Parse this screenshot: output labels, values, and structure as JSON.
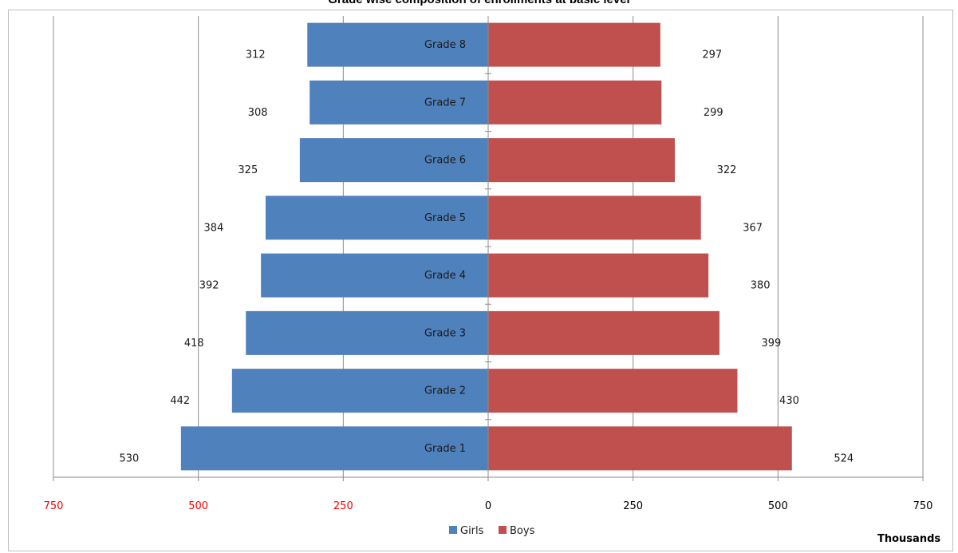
{
  "chart_data": {
    "type": "bar",
    "orientation": "horizontal",
    "layout": "population-pyramid",
    "title": "Grade wise composition of enrollments at basic level",
    "categories": [
      "Grade 1",
      "Grade 2",
      "Grade 3",
      "Grade 4",
      "Grade 5",
      "Grade 6",
      "Grade 7",
      "Grade 8"
    ],
    "series": [
      {
        "name": "Girls",
        "side": "left",
        "color": "#4f81bd",
        "values": [
          530,
          442,
          418,
          392,
          384,
          325,
          308,
          312
        ]
      },
      {
        "name": "Boys",
        "side": "right",
        "color": "#c0504d",
        "values": [
          524,
          430,
          399,
          380,
          367,
          322,
          299,
          297
        ]
      }
    ],
    "x_ticks": [
      "750",
      "500",
      "250",
      "0",
      "250",
      "500",
      "750"
    ],
    "x_tick_values": [
      -750,
      -500,
      -250,
      0,
      250,
      500,
      750
    ],
    "x_tick_colors": [
      "#ff0000",
      "#ff0000",
      "#ff0000",
      "#000000",
      "#000000",
      "#000000",
      "#000000"
    ],
    "xlim": [
      -750,
      750
    ],
    "display_unit": "Thousands",
    "grid": "vertical",
    "legend": "bottom-center"
  }
}
